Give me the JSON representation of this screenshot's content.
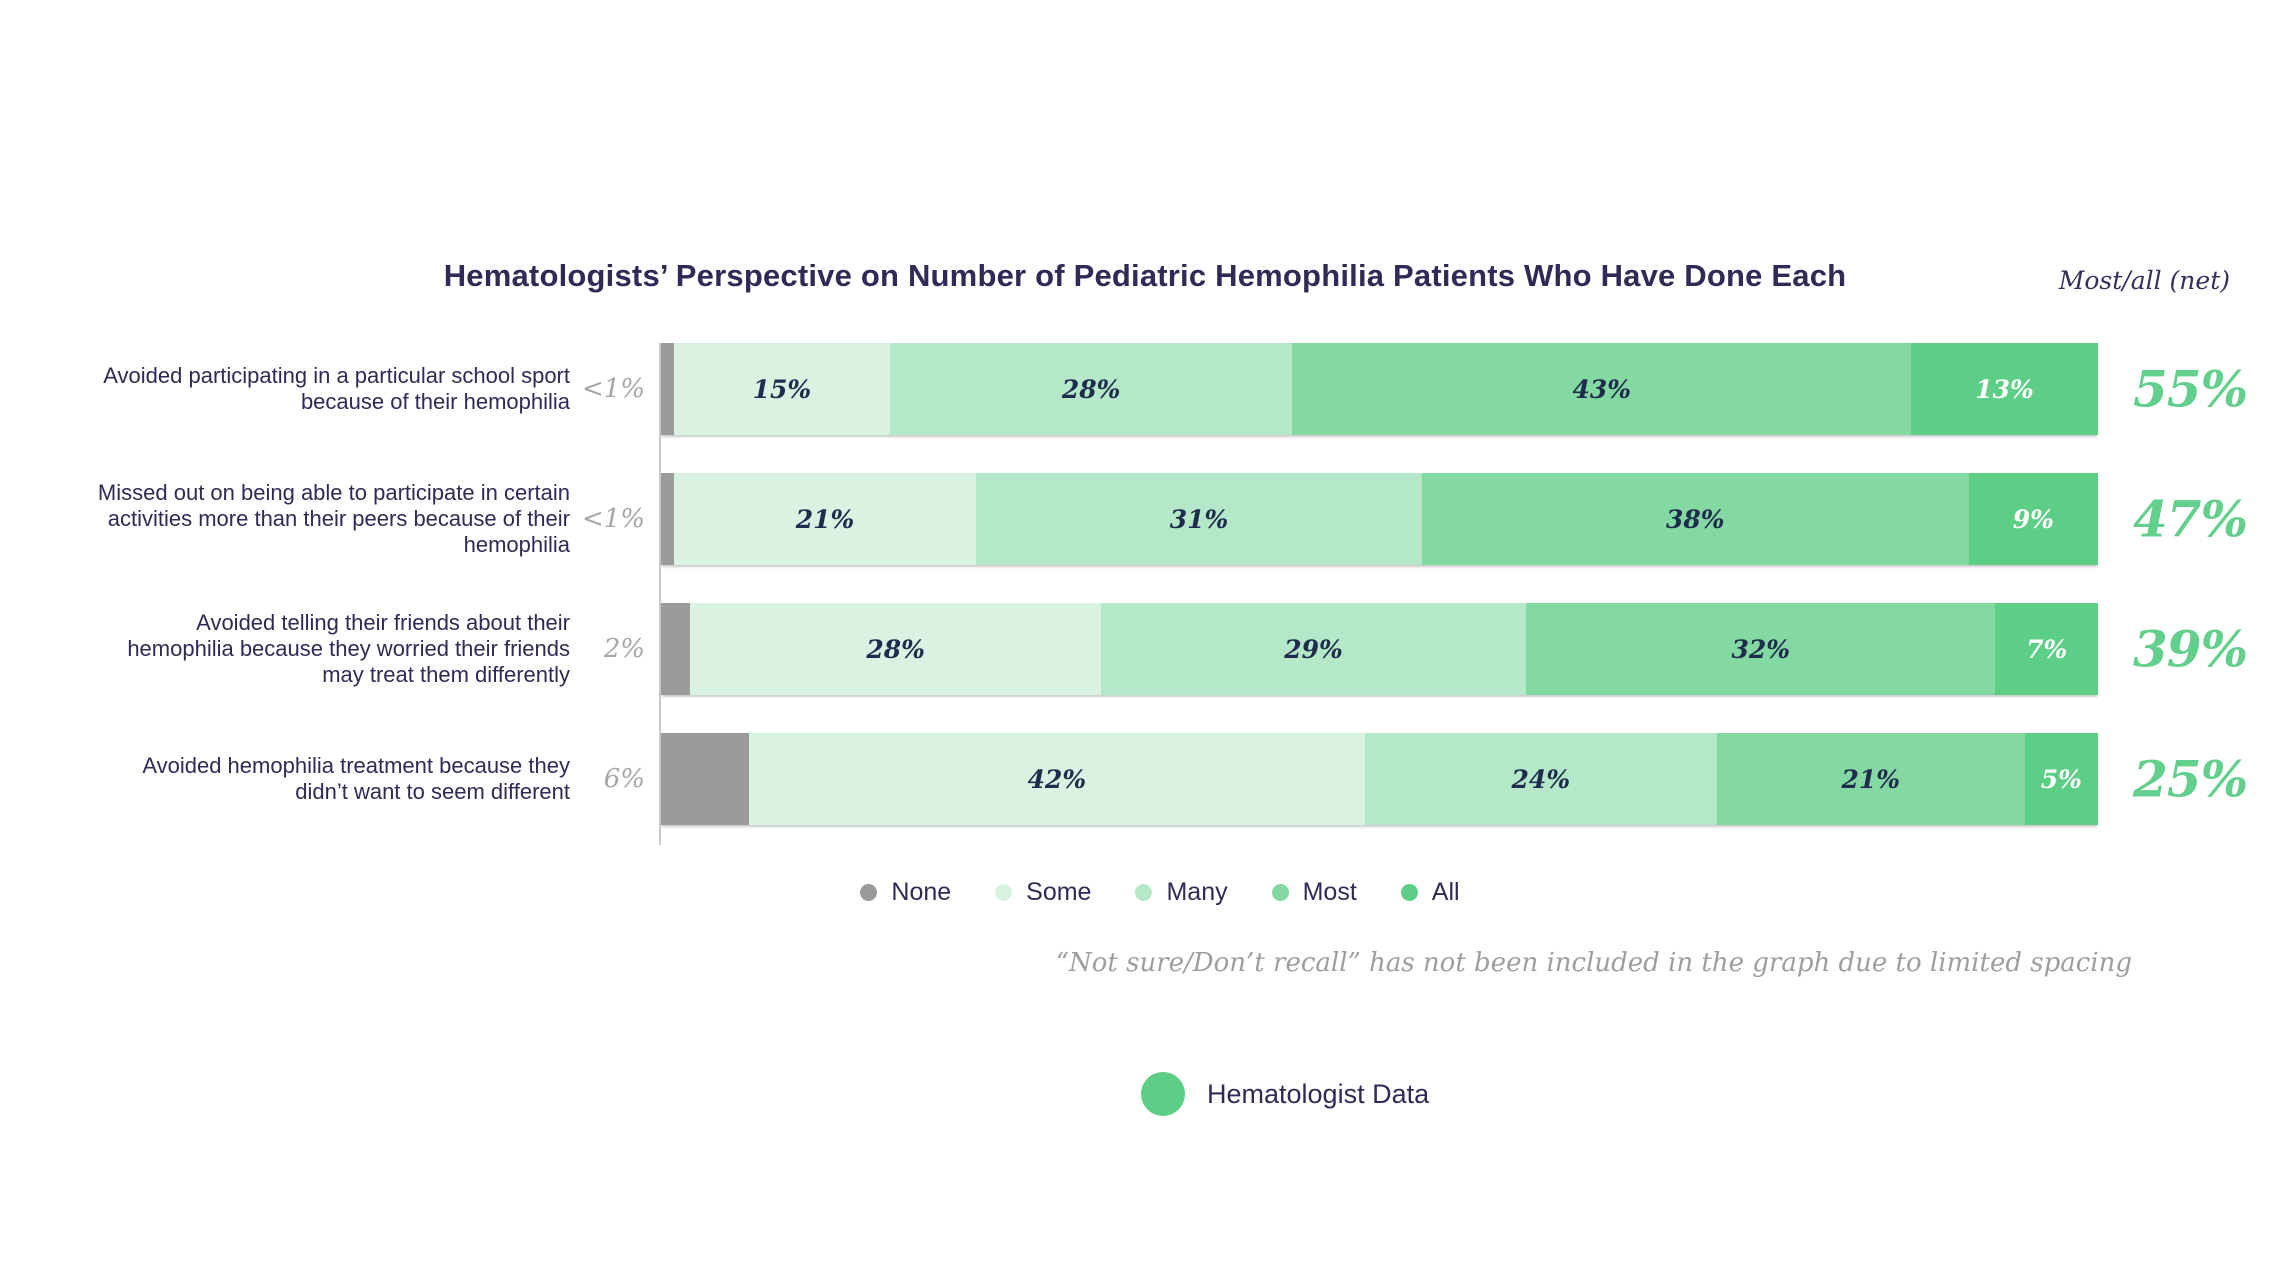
{
  "title": "Hematologists’ Perspective on Number of Pediatric Hemophilia Patients Who Have Done Each",
  "net_header": "Most/all (net)",
  "note": "“Not sure/Don’t recall” has not been included in the graph due to limited spacing",
  "footer_legend_label": "Hematologist Data",
  "colors": {
    "stack": {
      "None": "#9b9b9b",
      "Some": "#daf2e1",
      "Many": "#b5e8c8",
      "Most": "#83d9a1",
      "All": "#5cce86"
    },
    "net_text": "#63cf8d",
    "title_ink": "#322a56",
    "segment_ink": "#1f2c4e",
    "gray_label": "#a6a6a6",
    "note_gray": "#9e9e9e",
    "axis": "#c9c9c9",
    "footer_dot": "#5cce86"
  },
  "legend": [
    {
      "category": "None",
      "label": "None"
    },
    {
      "category": "Some",
      "label": "Some"
    },
    {
      "category": "Many",
      "label": "Many"
    },
    {
      "category": "Most",
      "label": "Most"
    },
    {
      "category": "All",
      "label": "All"
    }
  ],
  "chart_data": {
    "type": "bar",
    "subtype": "horizontal-stacked",
    "title": "Hematologists’ Perspective on Number of Pediatric Hemophilia Patients Who Have Done Each",
    "stack_categories": [
      "None",
      "Some",
      "Many",
      "Most",
      "All"
    ],
    "xlim": [
      0,
      100
    ],
    "grid": false,
    "legend_position": "bottom-center",
    "net_column_header": "Most/all (net)",
    "rows": [
      {
        "label": "Avoided participating in a particular school sport because of their hemophilia",
        "outside_label": "<1%",
        "segments": [
          {
            "category": "None",
            "value": 0.9,
            "label": ""
          },
          {
            "category": "Some",
            "value": 15,
            "label": "15%"
          },
          {
            "category": "Many",
            "value": 28,
            "label": "28%"
          },
          {
            "category": "Most",
            "value": 43,
            "label": "43%"
          },
          {
            "category": "All",
            "value": 13,
            "label": "13%"
          }
        ],
        "net": "55%"
      },
      {
        "label": "Missed out on being able to participate in certain activities more than their peers because of their hemophilia",
        "outside_label": "<1%",
        "segments": [
          {
            "category": "None",
            "value": 0.9,
            "label": ""
          },
          {
            "category": "Some",
            "value": 21,
            "label": "21%"
          },
          {
            "category": "Many",
            "value": 31,
            "label": "31%"
          },
          {
            "category": "Most",
            "value": 38,
            "label": "38%"
          },
          {
            "category": "All",
            "value": 9,
            "label": "9%"
          }
        ],
        "net": "47%"
      },
      {
        "label": "Avoided telling their friends about their hemophilia because they worried their friends may treat them differently",
        "outside_label": "2%",
        "segments": [
          {
            "category": "None",
            "value": 2,
            "label": ""
          },
          {
            "category": "Some",
            "value": 28,
            "label": "28%"
          },
          {
            "category": "Many",
            "value": 29,
            "label": "29%"
          },
          {
            "category": "Most",
            "value": 32,
            "label": "32%"
          },
          {
            "category": "All",
            "value": 7,
            "label": "7%"
          }
        ],
        "net": "39%"
      },
      {
        "label": "Avoided hemophilia treatment because they didn’t want to seem different",
        "outside_label": "6%",
        "segments": [
          {
            "category": "None",
            "value": 6,
            "label": ""
          },
          {
            "category": "Some",
            "value": 42,
            "label": "42%"
          },
          {
            "category": "Many",
            "value": 24,
            "label": "24%"
          },
          {
            "category": "Most",
            "value": 21,
            "label": "21%"
          },
          {
            "category": "All",
            "value": 5,
            "label": "5%"
          }
        ],
        "net": "25%"
      }
    ],
    "note": "“Not sure/Don’t recall” has not been included in the graph due to limited spacing"
  }
}
